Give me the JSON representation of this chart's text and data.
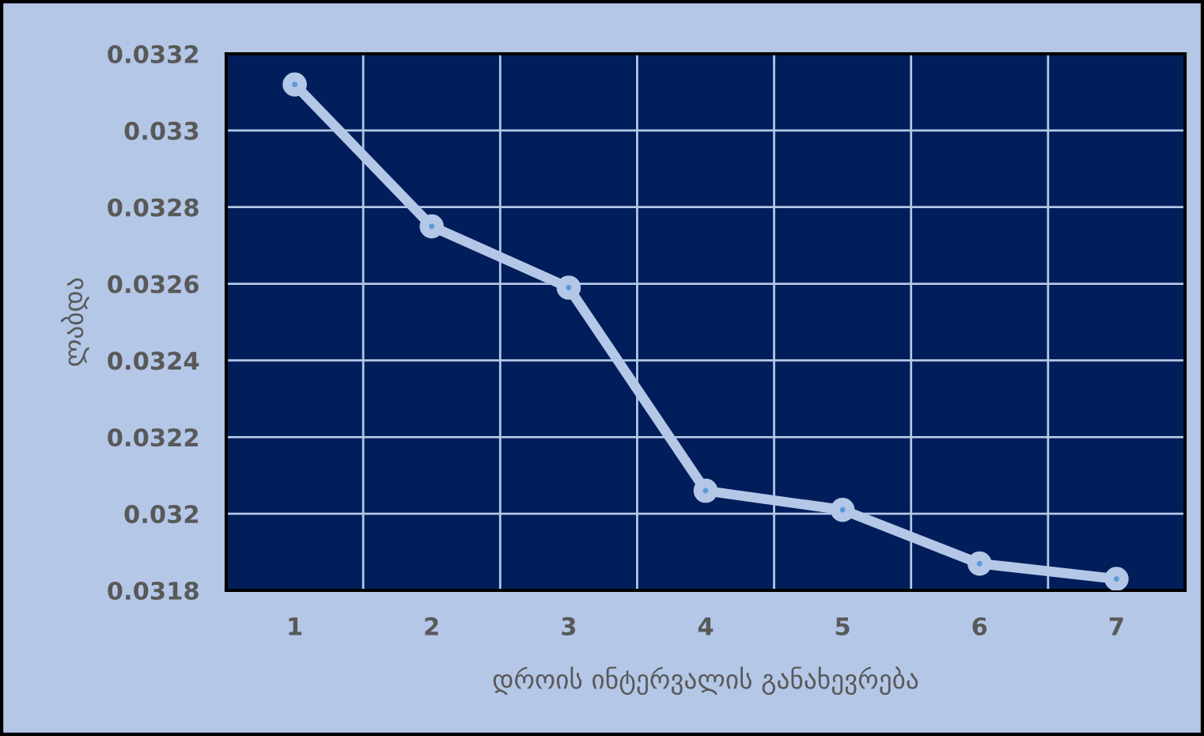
{
  "chart_data": {
    "type": "line",
    "xlabel": "დროის ინტერვალის განახევრება",
    "ylabel": "ლაბდა",
    "categories": [
      "1",
      "2",
      "3",
      "4",
      "5",
      "6",
      "7"
    ],
    "series": [
      {
        "color": "#b4c7e7",
        "values": [
          0.03312,
          0.03275,
          0.03259,
          0.03206,
          0.03201,
          0.03187,
          0.03183
        ]
      }
    ],
    "ylim": [
      0.0318,
      0.0332
    ],
    "yticks": [
      0.0318,
      0.032,
      0.0322,
      0.0324,
      0.0326,
      0.0328,
      0.033,
      0.0332
    ],
    "grid": true,
    "marker": "circle",
    "line_style": "solid"
  }
}
